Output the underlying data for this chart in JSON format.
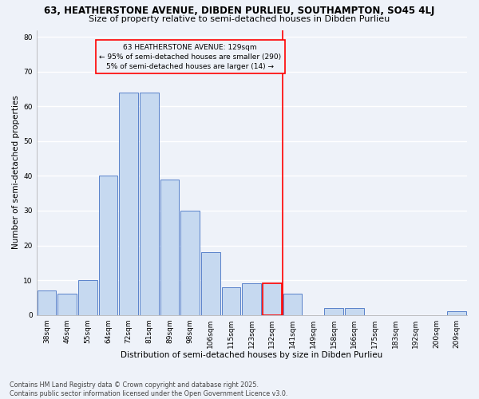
{
  "title": "63, HEATHERSTONE AVENUE, DIBDEN PURLIEU, SOUTHAMPTON, SO45 4LJ",
  "subtitle": "Size of property relative to semi-detached houses in Dibden Purlieu",
  "xlabel": "Distribution of semi-detached houses by size in Dibden Purlieu",
  "ylabel": "Number of semi-detached properties",
  "footnote1": "Contains HM Land Registry data © Crown copyright and database right 2025.",
  "footnote2": "Contains public sector information licensed under the Open Government Licence v3.0.",
  "categories": [
    "38sqm",
    "46sqm",
    "55sqm",
    "64sqm",
    "72sqm",
    "81sqm",
    "89sqm",
    "98sqm",
    "106sqm",
    "115sqm",
    "123sqm",
    "132sqm",
    "141sqm",
    "149sqm",
    "158sqm",
    "166sqm",
    "175sqm",
    "183sqm",
    "192sqm",
    "200sqm",
    "209sqm"
  ],
  "values": [
    7,
    6,
    10,
    40,
    64,
    64,
    39,
    30,
    18,
    8,
    9,
    9,
    6,
    0,
    2,
    2,
    0,
    0,
    0,
    0,
    1
  ],
  "bar_color": "#c6d9f0",
  "bar_edge_color": "#4472c4",
  "highlight_bar_index": 11,
  "highlight_bar_edge_color": "#ff0000",
  "vline_color": "#ff0000",
  "annotation_title": "63 HEATHERSTONE AVENUE: 129sqm",
  "annotation_line1": "← 95% of semi-detached houses are smaller (290)",
  "annotation_line2": "5% of semi-detached houses are larger (14) →",
  "annotation_box_color": "#ff0000",
  "ylim": [
    0,
    82
  ],
  "yticks": [
    0,
    10,
    20,
    30,
    40,
    50,
    60,
    70,
    80
  ],
  "bg_color": "#eef2f9",
  "grid_color": "#ffffff",
  "title_fontsize": 8.5,
  "subtitle_fontsize": 8,
  "axis_label_fontsize": 7.5,
  "tick_fontsize": 6.5,
  "annotation_fontsize": 6.5,
  "footnote_fontsize": 5.8
}
